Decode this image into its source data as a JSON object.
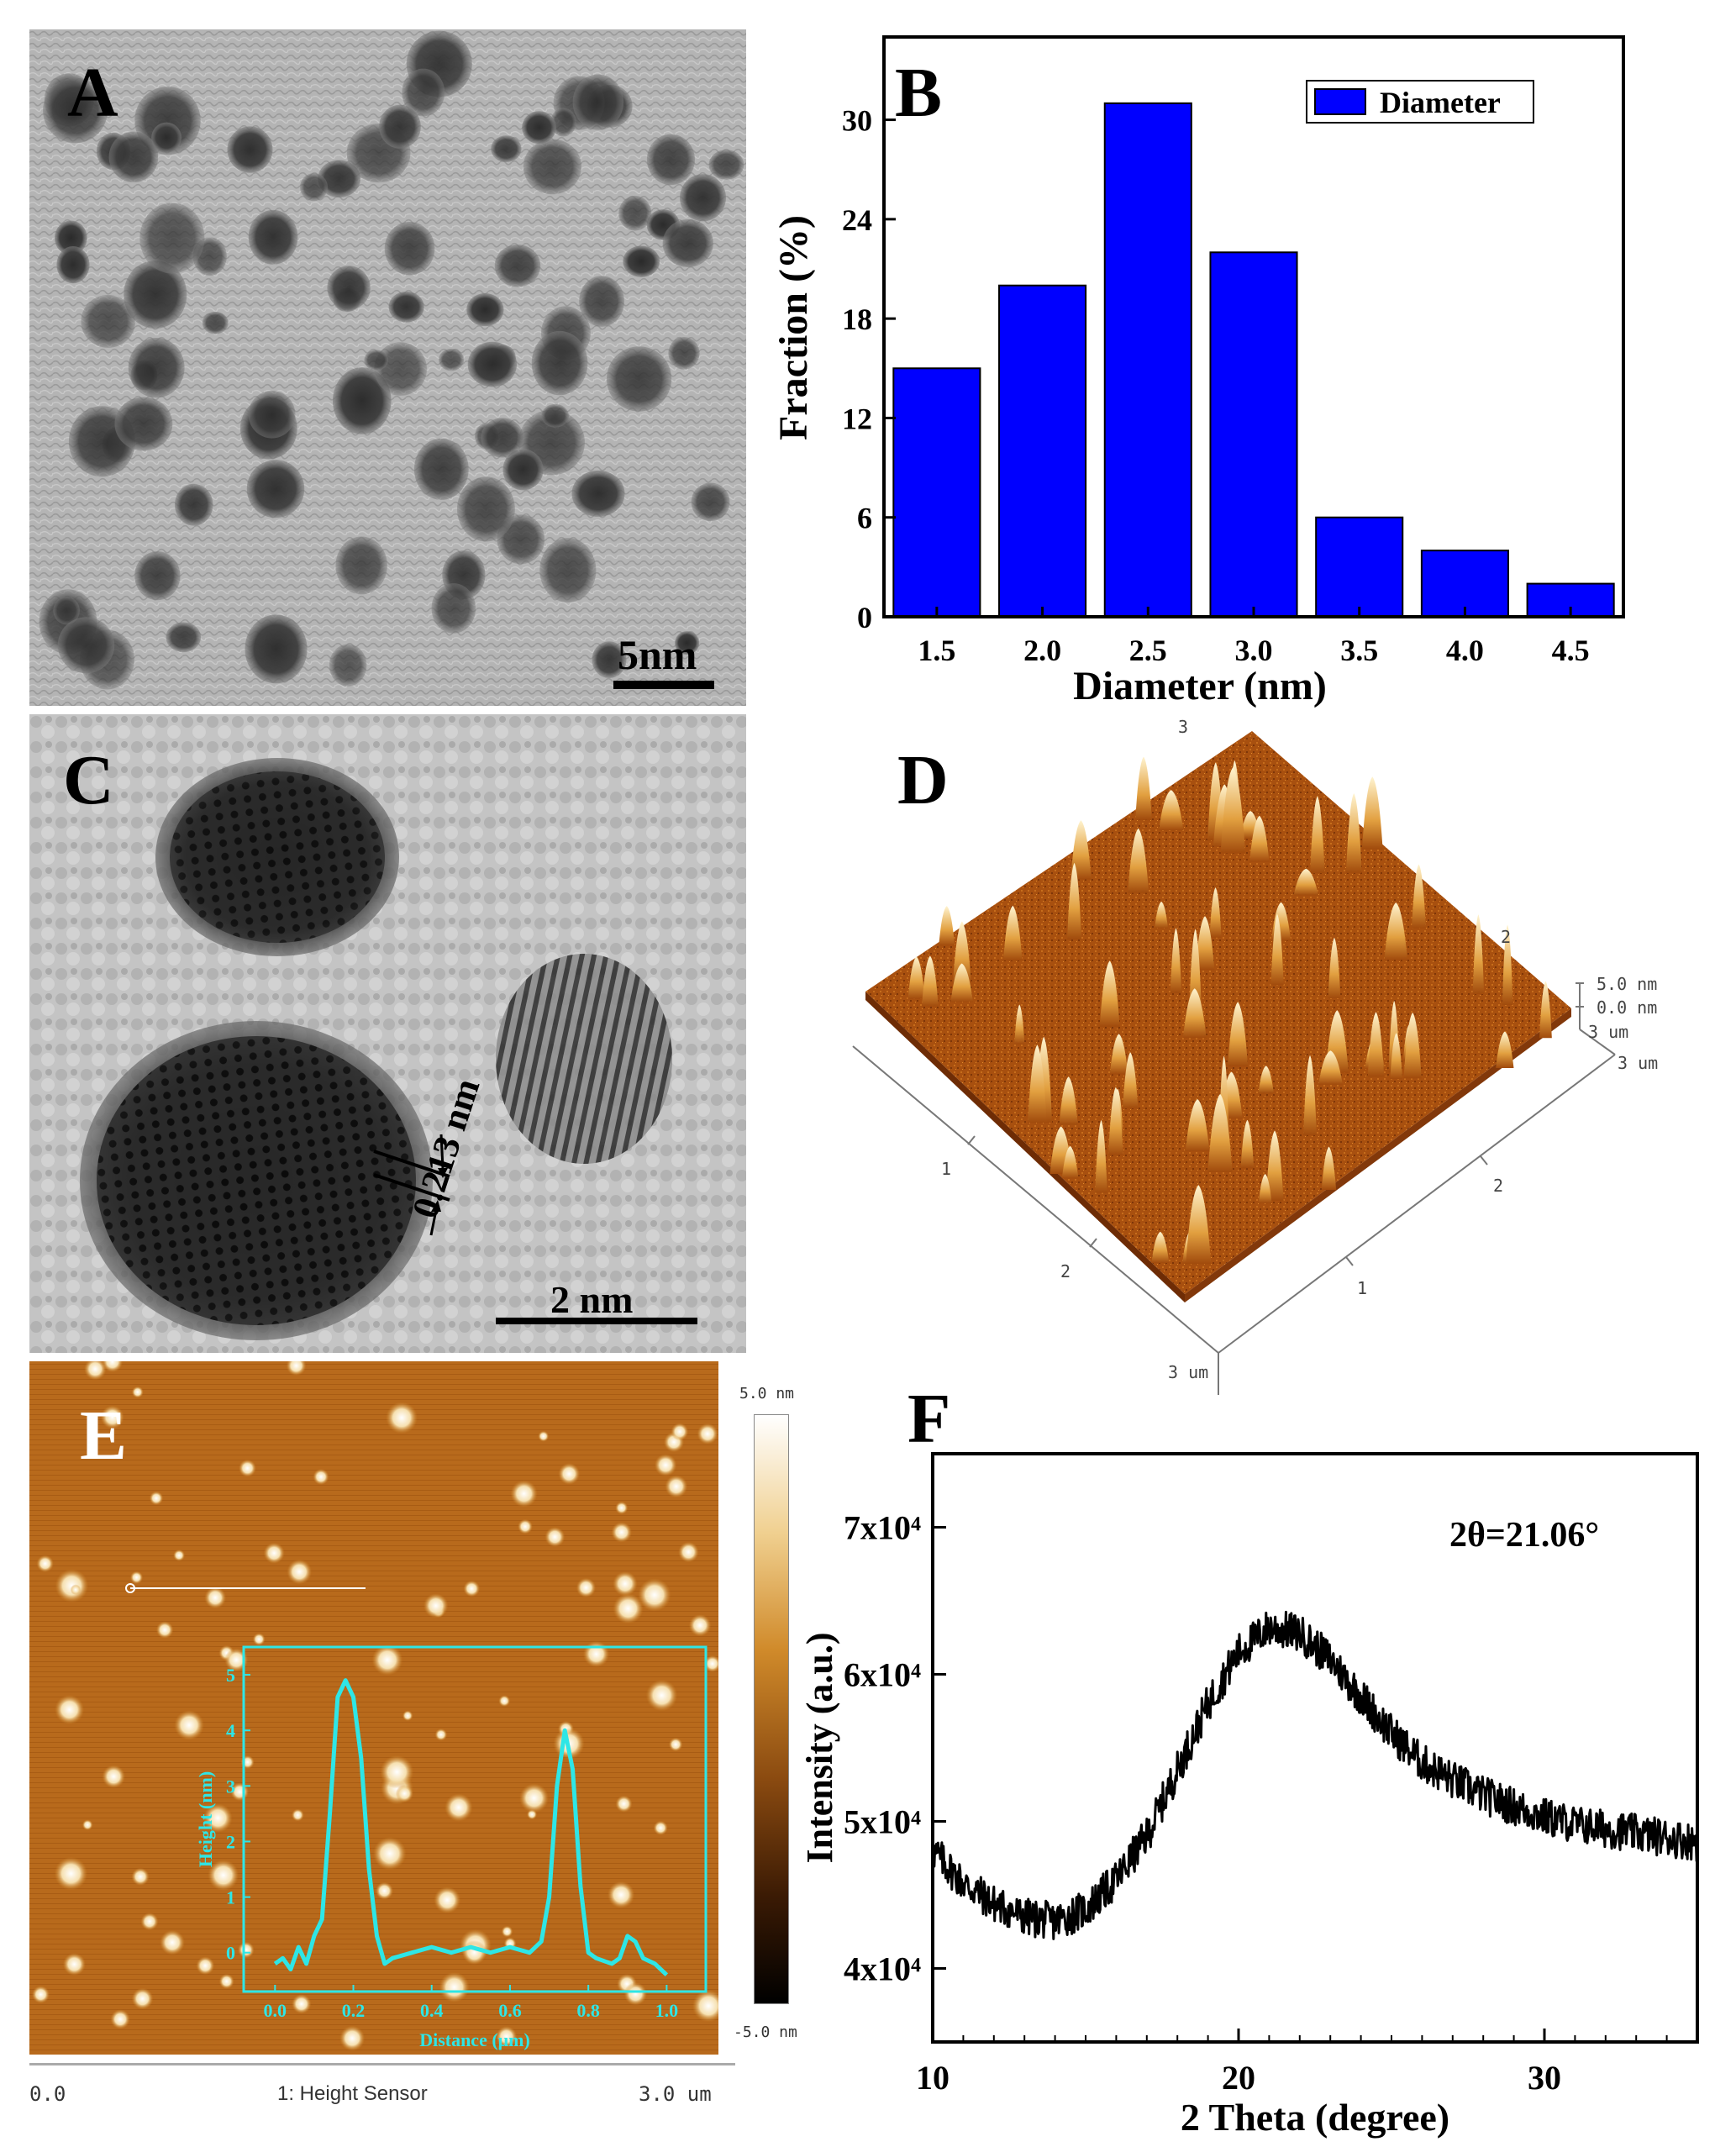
{
  "panels": {
    "A": {
      "label": "A",
      "scalebar": "5nm"
    },
    "B": {
      "label": "B"
    },
    "C": {
      "label": "C",
      "scalebar": "2 nm",
      "spacing": "0.213 nm"
    },
    "D": {
      "label": "D",
      "z_top": "5.0 nm",
      "z_zero": "0.0 nm",
      "axis_end": "3 um",
      "tick_1": "1",
      "tick_2": "2",
      "tick_3": "3"
    },
    "E": {
      "label": "E",
      "scale_max": "5.0 nm",
      "scale_min": "-5.0 nm",
      "footer_left": "0.0",
      "footer_center": "1: Height Sensor",
      "footer_right": "3.0 um"
    },
    "F": {
      "label": "F",
      "annotation": "2θ=21.06°"
    }
  },
  "chart_data": [
    {
      "panel": "B",
      "type": "bar",
      "categories": [
        "1.5",
        "2.0",
        "2.5",
        "3.0",
        "3.5",
        "4.0",
        "4.5"
      ],
      "series": [
        {
          "name": "Diameter",
          "values": [
            15,
            20,
            31,
            22,
            6,
            4,
            2
          ],
          "color": "#0000ff"
        }
      ],
      "xlabel": "Diameter (nm)",
      "ylabel": "Fraction (%)",
      "ylim": [
        0,
        35
      ],
      "yticks": [
        "0",
        "6",
        "12",
        "18",
        "24",
        "30"
      ],
      "legend": "top-right",
      "grid": false
    },
    {
      "panel": "E-inset",
      "type": "line",
      "x": [
        0.0,
        0.02,
        0.04,
        0.06,
        0.08,
        0.1,
        0.12,
        0.14,
        0.16,
        0.18,
        0.2,
        0.22,
        0.24,
        0.26,
        0.28,
        0.3,
        0.35,
        0.4,
        0.45,
        0.5,
        0.55,
        0.6,
        0.65,
        0.68,
        0.7,
        0.72,
        0.74,
        0.76,
        0.78,
        0.8,
        0.82,
        0.86,
        0.88,
        0.9,
        0.92,
        0.94,
        0.97,
        1.0
      ],
      "y": [
        -0.2,
        -0.1,
        -0.3,
        0.1,
        -0.2,
        0.3,
        0.6,
        2.5,
        4.6,
        4.9,
        4.6,
        3.5,
        1.5,
        0.3,
        -0.2,
        -0.1,
        0.0,
        0.1,
        0.0,
        0.1,
        0.0,
        0.1,
        0.0,
        0.2,
        1.0,
        3.0,
        4.0,
        3.3,
        1.2,
        0.0,
        -0.1,
        -0.2,
        -0.1,
        0.3,
        0.2,
        -0.1,
        -0.2,
        -0.4
      ],
      "color": "#2ee6e6",
      "xlabel": "Distance (μm)",
      "ylabel": "Height (nm)",
      "xticks": [
        "0.0",
        "0.2",
        "0.4",
        "0.6",
        "0.8",
        "1.0"
      ],
      "yticks": [
        "0",
        "1",
        "2",
        "3",
        "4",
        "5"
      ],
      "xlim": [
        -0.08,
        1.1
      ],
      "ylim": [
        -0.7,
        5.5
      ]
    },
    {
      "panel": "F",
      "type": "line",
      "x": [
        10,
        11,
        12,
        13,
        14,
        15,
        16,
        17,
        18,
        19,
        20,
        21,
        22,
        23,
        24,
        25,
        26,
        27,
        28,
        29,
        30,
        31,
        32,
        33,
        34,
        35
      ],
      "y": [
        48000,
        45800,
        44400,
        43500,
        43200,
        44000,
        46000,
        49000,
        53500,
        58000,
        61500,
        63200,
        62800,
        61000,
        58500,
        56000,
        54000,
        52800,
        51800,
        51000,
        50300,
        49800,
        49500,
        49200,
        48900,
        48600
      ],
      "color": "#000000",
      "xlabel": "2 Theta (degree)",
      "ylabel": "Intensity (a.u.)",
      "xticks": [
        "10",
        "20",
        "30"
      ],
      "yticks": [
        "4x10⁴",
        "5x10⁴",
        "6x10⁴",
        "7x10⁴"
      ],
      "xlim": [
        10,
        35
      ],
      "ylim": [
        35000,
        75000
      ]
    }
  ]
}
